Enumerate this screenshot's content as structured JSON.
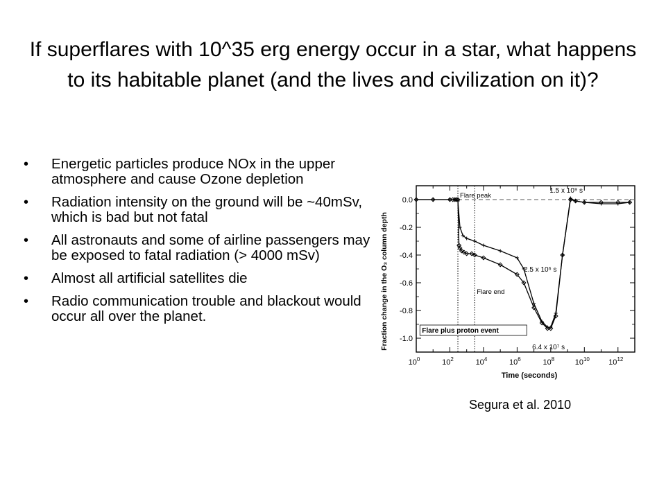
{
  "slide": {
    "title": "If superflares with 10^35 erg energy occur in a star, what happens to its habitable planet (and the lives and civilization on it)?",
    "bullets": [
      "Energetic particles produce NOx in the upper atmosphere and cause Ozone depletion",
      "Radiation intensity on the ground will be ~40mSv, which is bad but not fatal",
      "All astronauts and some of airline passengers may be exposed to fatal radiation  (> 4000 mSv)",
      "Almost all artificial satellites die",
      "Radio communication trouble and blackout would occur all over the planet."
    ],
    "credit": "Segura et al. 2010"
  },
  "chart_data": {
    "type": "line",
    "title": "",
    "xlabel": "Time (seconds)",
    "ylabel": "Fraction change in the O₃ column depth",
    "x_scale": "log",
    "xlim": [
      1,
      10000000000000.0
    ],
    "ylim": [
      -1.1,
      0.1
    ],
    "xticks": [
      {
        "value": 1,
        "base": "10",
        "exp": "0"
      },
      {
        "value": 100,
        "base": "10",
        "exp": "2"
      },
      {
        "value": 10000,
        "base": "10",
        "exp": "4"
      },
      {
        "value": 1000000,
        "base": "10",
        "exp": "6"
      },
      {
        "value": 100000000,
        "base": "10",
        "exp": "8"
      },
      {
        "value": 10000000000,
        "base": "10",
        "exp": "10"
      },
      {
        "value": 1000000000000,
        "base": "10",
        "exp": "12"
      }
    ],
    "yticks": [
      {
        "value": 0.0,
        "label": "0.0"
      },
      {
        "value": -0.2,
        "label": "-0.2"
      },
      {
        "value": -0.4,
        "label": "-0.4"
      },
      {
        "value": -0.6,
        "label": "-0.6"
      },
      {
        "value": -0.8,
        "label": "-0.8"
      },
      {
        "value": -1.0,
        "label": "-1.0"
      }
    ],
    "vlines": [
      {
        "x": 300,
        "label": "Flare peak",
        "style": "dotted"
      },
      {
        "x": 3000,
        "label": "Flare end",
        "style": "dotted"
      }
    ],
    "hline": {
      "y": 0.0,
      "style": "dashed"
    },
    "annotations": [
      {
        "label": "Flare plus proton event",
        "x": 1.5,
        "y": -0.95
      },
      {
        "label": "2.5 x 10⁶ s",
        "x": 2500000,
        "y": -0.52
      },
      {
        "label": "6.4 x 10⁷ s",
        "x": 64000000,
        "y": -0.98
      },
      {
        "label": "1.5 x 10⁹ s",
        "x": 1500000000,
        "y": 0.04
      }
    ],
    "series": [
      {
        "marker": "plus",
        "x": [
          1,
          10,
          100,
          200,
          300,
          400,
          600,
          1000,
          3000,
          10000,
          100000,
          1000000,
          2500000,
          10000000,
          30000000,
          64000000,
          100000000,
          200000000,
          500000000,
          1500000000,
          3000000000,
          10000000000,
          100000000000,
          1000000000000,
          5000000000000
        ],
        "y": [
          0,
          0,
          0,
          0,
          -0.01,
          -0.2,
          -0.26,
          -0.28,
          -0.3,
          -0.33,
          -0.37,
          -0.42,
          -0.5,
          -0.75,
          -0.88,
          -0.92,
          -0.92,
          -0.82,
          -0.4,
          0.01,
          -0.01,
          -0.02,
          -0.03,
          -0.03,
          -0.02
        ]
      },
      {
        "marker": "diamond",
        "x": [
          1,
          10,
          100,
          150,
          200,
          250,
          300,
          350,
          400,
          500,
          700,
          1000,
          2000,
          3000,
          10000,
          100000,
          1000000,
          2500000,
          10000000,
          30000000,
          64000000,
          100000000,
          200000000,
          500000000,
          1500000000,
          3000000000,
          10000000000,
          100000000000,
          1000000000000,
          5000000000000
        ],
        "y": [
          0,
          0,
          0,
          0,
          0,
          0,
          0,
          -0.33,
          -0.35,
          -0.37,
          -0.38,
          -0.39,
          -0.39,
          -0.4,
          -0.42,
          -0.47,
          -0.54,
          -0.6,
          -0.78,
          -0.89,
          -0.93,
          -0.93,
          -0.84,
          -0.4,
          0,
          -0.01,
          -0.02,
          -0.02,
          -0.02,
          -0.02
        ]
      }
    ]
  }
}
